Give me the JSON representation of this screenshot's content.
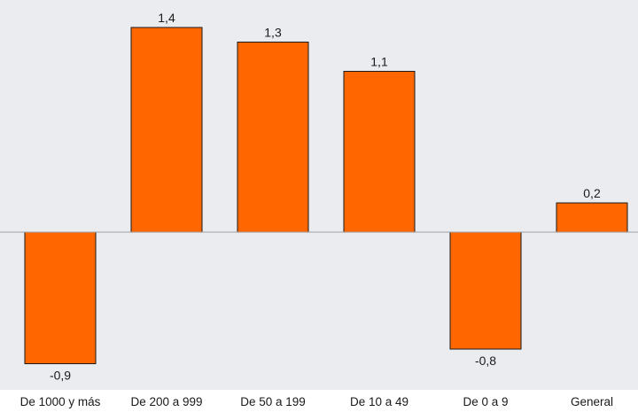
{
  "chart_data": {
    "type": "bar",
    "title": "",
    "xlabel": "",
    "ylabel": "",
    "categories": [
      "De 1000 y más",
      "De 200 a 999",
      "De 50 a 199",
      "De 10 a 49",
      "De 0 a 9",
      "General"
    ],
    "values": [
      -0.9,
      1.4,
      1.3,
      1.1,
      -0.8,
      0.2
    ],
    "value_labels": [
      "-0,9",
      "1,4",
      "1,3",
      "1,1",
      "-0,8",
      "0,2"
    ],
    "ylim": [
      -1.0,
      1.5
    ],
    "grid": false,
    "legend": "none",
    "colors": {
      "bar": "#ff6600",
      "bar_border": "#1a1a1a",
      "plot_background": "#eaecf0",
      "zero_line": "#a0a0a0",
      "text": "#1a1a1a"
    }
  }
}
